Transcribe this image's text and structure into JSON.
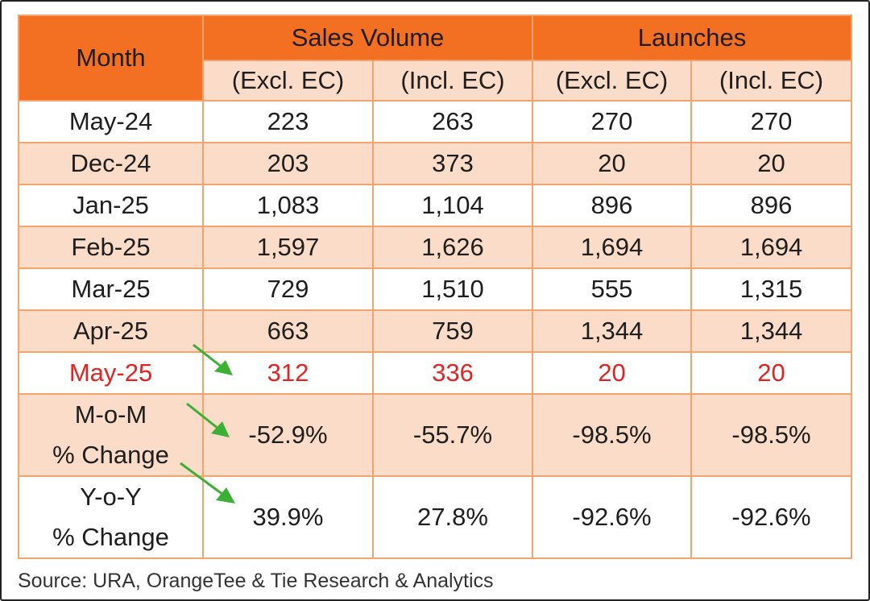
{
  "chart_data": {
    "type": "table",
    "headers": {
      "month": "Month",
      "groups": [
        "Sales Volume",
        "Launches"
      ],
      "subheaders": [
        "(Excl. EC)",
        "(Incl. EC)",
        "(Excl. EC)",
        "(Incl. EC)"
      ]
    },
    "rows": [
      {
        "month": "May-24",
        "values": [
          "223",
          "263",
          "270",
          "270"
        ]
      },
      {
        "month": "Dec-24",
        "values": [
          "203",
          "373",
          "20",
          "20"
        ]
      },
      {
        "month": "Jan-25",
        "values": [
          "1,083",
          "1,104",
          "896",
          "896"
        ]
      },
      {
        "month": "Feb-25",
        "values": [
          "1,597",
          "1,626",
          "1,694",
          "1,694"
        ]
      },
      {
        "month": "Mar-25",
        "values": [
          "729",
          "1,510",
          "555",
          "1,315"
        ]
      },
      {
        "month": "Apr-25",
        "values": [
          "663",
          "759",
          "1,344",
          "1,344"
        ]
      },
      {
        "month": "May-25",
        "values": [
          "312",
          "336",
          "20",
          "20"
        ]
      }
    ],
    "changes": [
      {
        "label1": "M-o-M",
        "label2": "% Change",
        "values": [
          "-52.9%",
          "-55.7%",
          "-98.5%",
          "-98.5%"
        ]
      },
      {
        "label1": "Y-o-Y",
        "label2": "% Change",
        "values": [
          "39.9%",
          "27.8%",
          "-92.6%",
          "-92.6%"
        ]
      }
    ],
    "highlight_row": "May-25"
  },
  "source": "Source: URA, OrangeTee & Tie Research & Analytics",
  "colors": {
    "header": "#f36f21",
    "band": "#fbdcc8",
    "border": "#f4a36a",
    "highlight_text": "#e02424",
    "arrow": "#3cb034"
  },
  "icons": [
    "green-arrow-icon"
  ]
}
